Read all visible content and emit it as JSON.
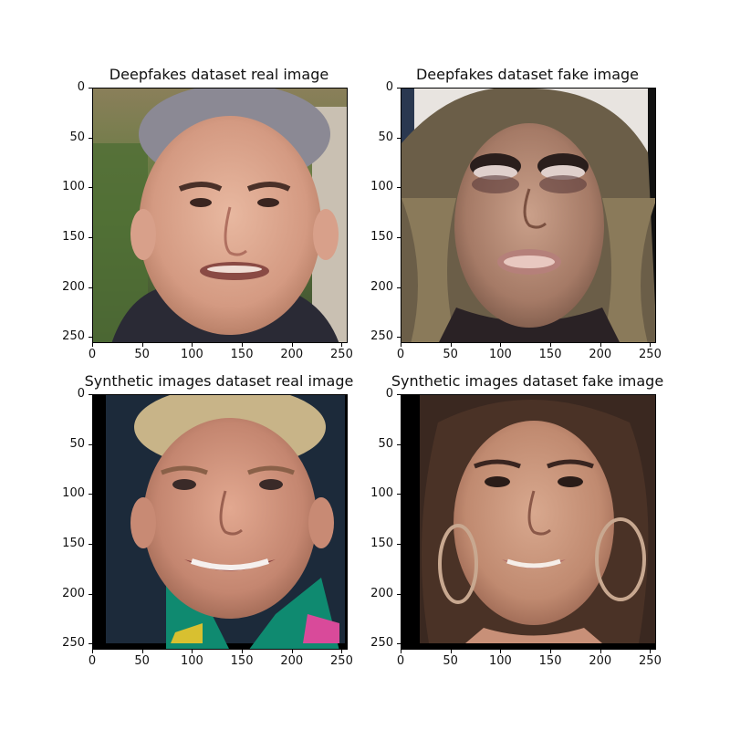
{
  "panels": [
    {
      "title": "Deepfakes dataset real image"
    },
    {
      "title": "Deepfakes dataset fake image"
    },
    {
      "title": "Synthetic images dataset real image"
    },
    {
      "title": "Synthetic images dataset fake image"
    }
  ],
  "xticks": [
    "0",
    "50",
    "100",
    "150",
    "200",
    "250"
  ],
  "yticks": [
    "0",
    "50",
    "100",
    "150",
    "200",
    "250"
  ]
}
